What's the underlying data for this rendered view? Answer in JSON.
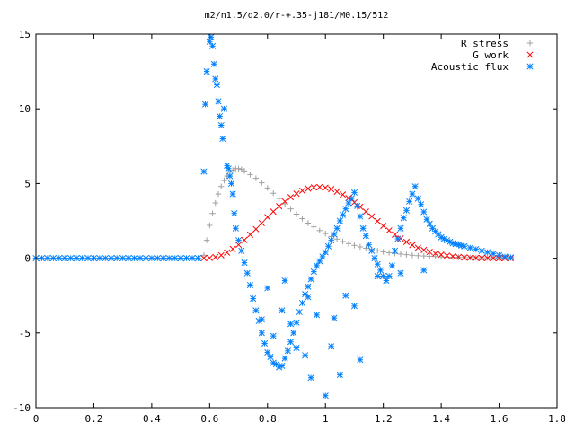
{
  "chart_data": {
    "type": "scatter",
    "title": "m2/n1.5/q2.0/r-+.35-j181/M0.15/512",
    "xlabel": "",
    "ylabel": "",
    "xlim": [
      0,
      1.8
    ],
    "ylim": [
      -10,
      15
    ],
    "x_ticks": [
      0,
      0.2,
      0.4,
      0.6,
      0.8,
      1,
      1.2,
      1.4,
      1.6,
      1.8
    ],
    "x_tick_labels": [
      "0",
      "0.2",
      "0.4",
      "0.6",
      "0.8",
      "1",
      "1.2",
      "1.4",
      "1.6",
      "1.8"
    ],
    "y_ticks": [
      -10,
      -5,
      0,
      5,
      10,
      15
    ],
    "y_tick_labels": [
      "-10",
      "-5",
      "0",
      "5",
      "10",
      "15"
    ],
    "grid": false,
    "legend_position": "top-right",
    "series": [
      {
        "name": "R stress",
        "marker": "plus",
        "color": "#a0a0a0",
        "x": [
          0.58,
          0.59,
          0.6,
          0.61,
          0.62,
          0.63,
          0.64,
          0.65,
          0.66,
          0.67,
          0.68,
          0.69,
          0.7,
          0.71,
          0.72,
          0.74,
          0.76,
          0.78,
          0.8,
          0.82,
          0.84,
          0.86,
          0.88,
          0.9,
          0.92,
          0.94,
          0.96,
          0.98,
          1.0,
          1.02,
          1.04,
          1.06,
          1.08,
          1.1,
          1.12,
          1.14,
          1.16,
          1.18,
          1.2,
          1.22,
          1.24,
          1.26,
          1.28,
          1.3,
          1.32,
          1.34,
          1.36,
          1.38,
          1.4,
          1.42,
          1.44,
          1.46,
          1.48,
          1.5,
          1.52,
          1.54,
          1.56,
          1.58,
          1.6,
          1.62,
          1.64
        ],
        "y": [
          0.2,
          1.2,
          2.2,
          3.0,
          3.7,
          4.3,
          4.8,
          5.2,
          5.5,
          5.75,
          5.9,
          6.0,
          6.0,
          5.95,
          5.85,
          5.6,
          5.35,
          5.05,
          4.7,
          4.35,
          4.0,
          3.65,
          3.3,
          2.95,
          2.65,
          2.35,
          2.1,
          1.85,
          1.65,
          1.45,
          1.28,
          1.12,
          0.98,
          0.86,
          0.76,
          0.67,
          0.58,
          0.5,
          0.43,
          0.37,
          0.32,
          0.28,
          0.24,
          0.2,
          0.17,
          0.15,
          0.13,
          0.11,
          0.09,
          0.08,
          0.07,
          0.06,
          0.05,
          0.04,
          0.04,
          0.03,
          0.03,
          0.02,
          0.02,
          0.02,
          0.01
        ]
      },
      {
        "name": "G work",
        "marker": "cross",
        "color": "#ff0000",
        "x": [
          0.58,
          0.6,
          0.62,
          0.64,
          0.66,
          0.68,
          0.7,
          0.72,
          0.74,
          0.76,
          0.78,
          0.8,
          0.82,
          0.84,
          0.86,
          0.88,
          0.9,
          0.92,
          0.94,
          0.96,
          0.98,
          1.0,
          1.02,
          1.04,
          1.06,
          1.08,
          1.1,
          1.12,
          1.14,
          1.16,
          1.18,
          1.2,
          1.22,
          1.24,
          1.26,
          1.28,
          1.3,
          1.32,
          1.34,
          1.36,
          1.38,
          1.4,
          1.42,
          1.44,
          1.46,
          1.48,
          1.5,
          1.52,
          1.54,
          1.56,
          1.58,
          1.6,
          1.62,
          1.64
        ],
        "y": [
          0.0,
          0.02,
          0.08,
          0.2,
          0.38,
          0.62,
          0.9,
          1.22,
          1.58,
          1.95,
          2.35,
          2.75,
          3.12,
          3.48,
          3.8,
          4.08,
          4.32,
          4.52,
          4.66,
          4.74,
          4.76,
          4.72,
          4.62,
          4.46,
          4.26,
          4.02,
          3.74,
          3.44,
          3.12,
          2.8,
          2.48,
          2.16,
          1.86,
          1.58,
          1.32,
          1.09,
          0.88,
          0.7,
          0.55,
          0.42,
          0.32,
          0.24,
          0.17,
          0.12,
          0.08,
          0.05,
          0.03,
          0.02,
          0.01,
          0.01,
          0.0,
          0.0,
          0.0,
          0.0
        ]
      },
      {
        "name": "Acoustic flux",
        "marker": "star",
        "color": "#0080ff",
        "x": [
          0.0,
          0.02,
          0.04,
          0.06,
          0.08,
          0.1,
          0.12,
          0.14,
          0.16,
          0.18,
          0.2,
          0.22,
          0.24,
          0.26,
          0.28,
          0.3,
          0.32,
          0.34,
          0.36,
          0.38,
          0.4,
          0.42,
          0.44,
          0.46,
          0.48,
          0.5,
          0.52,
          0.54,
          0.56,
          0.58,
          0.585,
          0.59,
          0.6,
          0.605,
          0.61,
          0.615,
          0.62,
          0.625,
          0.63,
          0.635,
          0.64,
          0.645,
          0.65,
          0.66,
          0.665,
          0.67,
          0.675,
          0.68,
          0.685,
          0.69,
          0.7,
          0.71,
          0.72,
          0.73,
          0.74,
          0.75,
          0.76,
          0.77,
          0.78,
          0.79,
          0.8,
          0.81,
          0.82,
          0.83,
          0.84,
          0.85,
          0.86,
          0.87,
          0.88,
          0.89,
          0.9,
          0.91,
          0.92,
          0.93,
          0.94,
          0.95,
          0.96,
          0.97,
          0.98,
          0.99,
          1.0,
          1.01,
          1.02,
          1.03,
          1.04,
          1.05,
          1.06,
          1.07,
          1.08,
          1.09,
          1.1,
          1.11,
          1.12,
          1.13,
          1.14,
          1.15,
          1.16,
          1.17,
          1.18,
          1.19,
          1.2,
          1.21,
          1.22,
          1.23,
          1.24,
          1.25,
          1.26,
          1.27,
          1.28,
          1.29,
          1.3,
          1.31,
          1.32,
          1.33,
          1.34,
          1.35,
          1.36,
          1.37,
          1.38,
          1.39,
          1.4,
          1.41,
          1.42,
          1.43,
          1.44,
          1.45,
          1.46,
          1.47,
          1.48,
          1.5,
          1.52,
          1.54,
          1.56,
          1.58,
          1.6,
          1.62,
          1.64,
          0.8,
          0.85,
          0.9,
          0.95,
          1.0,
          1.05,
          0.82,
          0.88,
          0.93,
          0.97,
          1.03,
          1.07,
          1.12,
          0.78,
          0.86,
          0.94,
          1.02,
          1.1,
          1.18,
          1.26,
          1.34
        ],
        "y": [
          0,
          0,
          0,
          0,
          0,
          0,
          0,
          0,
          0,
          0,
          0,
          0,
          0,
          0,
          0,
          0,
          0,
          0,
          0,
          0,
          0,
          0,
          0,
          0,
          0,
          0,
          0,
          0,
          0,
          5.8,
          10.3,
          12.5,
          14.5,
          14.8,
          14.2,
          13.0,
          12.0,
          11.6,
          10.5,
          9.5,
          8.9,
          8.0,
          10.0,
          6.2,
          6.0,
          5.5,
          5.0,
          4.3,
          3.0,
          2.0,
          1.2,
          0.5,
          -0.3,
          -1.0,
          -1.8,
          -2.7,
          -3.5,
          -4.2,
          -5.0,
          -5.7,
          -6.3,
          -6.6,
          -7.0,
          -7.1,
          -7.3,
          -7.2,
          -6.7,
          -6.2,
          -5.6,
          -5.0,
          -4.3,
          -3.6,
          -3.0,
          -2.4,
          -1.9,
          -1.4,
          -0.9,
          -0.5,
          -0.2,
          0.1,
          0.4,
          0.8,
          1.2,
          1.6,
          2.0,
          2.5,
          2.9,
          3.3,
          3.7,
          4.0,
          4.4,
          3.5,
          2.8,
          2.0,
          1.5,
          0.9,
          0.5,
          0.0,
          -0.4,
          -0.8,
          -1.2,
          -1.5,
          -1.2,
          -0.5,
          0.5,
          1.3,
          2.0,
          2.7,
          3.2,
          3.8,
          4.3,
          4.8,
          4.0,
          3.6,
          3.1,
          2.6,
          2.3,
          2.0,
          1.8,
          1.6,
          1.4,
          1.3,
          1.2,
          1.1,
          1.0,
          0.95,
          0.9,
          0.85,
          0.8,
          0.7,
          0.6,
          0.5,
          0.4,
          0.3,
          0.2,
          0.1,
          0.05,
          -2.0,
          -3.5,
          -6.0,
          -8.0,
          -9.2,
          -7.8,
          -5.2,
          -4.4,
          -6.5,
          -3.8,
          -4.0,
          -2.5,
          -6.8,
          -4.1,
          -1.5,
          -2.6,
          -5.9,
          -3.2,
          -1.2,
          -1.0,
          -0.8
        ]
      }
    ]
  }
}
